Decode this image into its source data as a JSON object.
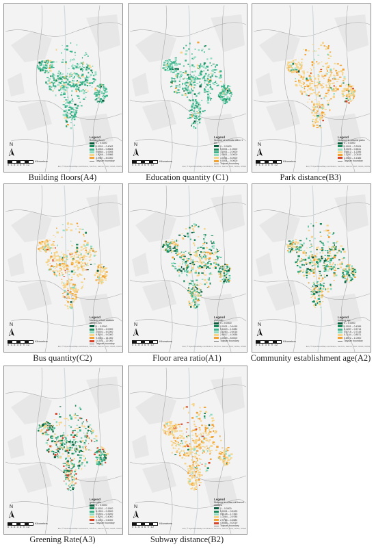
{
  "north_label": "N",
  "scale": {
    "ticks": "0 1.5 3     6      9     12",
    "unit": "Kilometers"
  },
  "credit": "Esri, © OpenStreetMap contributors, TomTom, Garmin, FAO, NOAA, USGS",
  "boundary_label": "Taiyuan boundary",
  "panels": [
    {
      "caption": "Building floors(A4)",
      "legend_title": "Legend",
      "legend_sub": "Building floors",
      "classes": [
        "0 – 0.0000",
        "0.0001 – 0.4062",
        "0.4063 – 0.8583",
        "0.8584 – 1.9265",
        "1.9266 – 3.9986",
        "3.9987 – 8.0000"
      ],
      "colors": [
        "#0b5d3d",
        "#1b8a5a",
        "#3cb38a",
        "#8fdcc0",
        "#f6d48a",
        "#f2a233"
      ],
      "scheme": "green"
    },
    {
      "caption": "Education quantity (C1)",
      "legend_title": "Legend",
      "legend_sub": "Number of schools within 1 km",
      "classes": [
        "0 – 0.0000",
        "0.0001 – 1.0000",
        "1.0001 – 2.0000",
        "2.0001 – 3.0000",
        "3.0001 – 5.0000",
        "5.0001 – 9.0000"
      ],
      "colors": [
        "#0b5d3d",
        "#1b8a5a",
        "#3cb38a",
        "#8fdcc0",
        "#f6d48a",
        "#f2a233"
      ],
      "scheme": "green"
    },
    {
      "caption": "Park distance(B3)",
      "legend_title": "Legend",
      "legend_sub": "Distance to nearest parks",
      "classes": [
        "0 – 0.0000",
        "0.0001 – 0.3024",
        "0.3025 – 0.6811",
        "0.6812 – 1.2286",
        "1.2287 – 2.0519",
        "2.0520 – 4.1386"
      ],
      "colors": [
        "#0b5d3d",
        "#1b8a5a",
        "#8fdcc0",
        "#f6d48a",
        "#f2a233",
        "#d6452b"
      ],
      "scheme": "orange"
    },
    {
      "caption": "Bus quantity(C2)",
      "legend_title": "Legend",
      "legend_sub": "Number of bus stations within 1 km",
      "classes": [
        "0 – 0.0000",
        "0.0001 – 2.0000",
        "2.0001 – 5.0000",
        "5.0001 – 9.0000",
        "9.0001 – 14.000",
        "14.001 – 22.000"
      ],
      "colors": [
        "#0b5d3d",
        "#1b8a5a",
        "#8fdcc0",
        "#f6d48a",
        "#f2a233",
        "#d6452b"
      ],
      "scheme": "orange"
    },
    {
      "caption": "Floor area ratio(A1)",
      "legend_title": "Legend",
      "legend_sub": "plot ratio",
      "classes": [
        "0 – 0.0000",
        "0.0001 – 0.6418",
        "0.6419 – 1.5282",
        "1.5283 – 2.6016",
        "2.6017 – 4.0538",
        "4.0539 – 8.5000"
      ],
      "colors": [
        "#0b5d3d",
        "#1b8a5a",
        "#3cb38a",
        "#8fdcc0",
        "#f6d48a",
        "#f2a233"
      ],
      "scheme": "mixed"
    },
    {
      "caption": "Community establishment age(A2)",
      "legend_title": "Legend",
      "legend_sub": "building age",
      "classes": [
        "0 – 0.0000",
        "0.0001 – 0.4286",
        "0.4287 – 0.5714",
        "0.5715 – 0.7143",
        "0.7144 – 0.8571",
        "0.8572 – 1.0000"
      ],
      "colors": [
        "#0b5d3d",
        "#1b8a5a",
        "#3cb38a",
        "#8fdcc0",
        "#f6d48a",
        "#f2a233"
      ],
      "scheme": "mixed"
    },
    {
      "caption": "Greening Rate(A3)",
      "legend_title": "Legend",
      "legend_sub": "green ratio",
      "classes": [
        "0 – 0.0000",
        "0.0001 – 0.1500",
        "0.1501 – 0.2500",
        "0.2501 – 0.3200",
        "0.3201 – 0.4000",
        "0.4001 – 0.6000"
      ],
      "colors": [
        "#0b5d3d",
        "#1b8a5a",
        "#3cb38a",
        "#8fdcc0",
        "#f6d48a",
        "#d6452b"
      ],
      "scheme": "mixed"
    },
    {
      "caption": "Subway distance(B2)",
      "legend_title": "Legend",
      "legend_sub": "Distance to urban rail transit stations",
      "classes": [
        "0 – 0.0000",
        "0.0001 – 0.8125",
        "0.8126 – 1.7263",
        "1.7264 – 2.9785",
        "2.9786 – 4.6582",
        "4.6583 – 9.2019"
      ],
      "colors": [
        "#0b5d3d",
        "#1b8a5a",
        "#8fdcc0",
        "#f6d48a",
        "#f2a233",
        "#d6452b"
      ],
      "scheme": "orange"
    }
  ]
}
